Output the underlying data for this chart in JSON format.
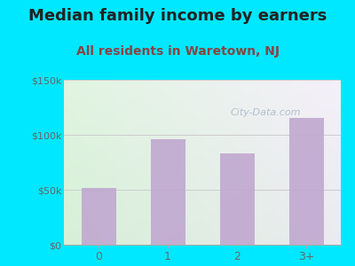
{
  "title": "Median family income by earners",
  "subtitle": "All residents in Waretown, NJ",
  "categories": [
    "0",
    "1",
    "2",
    "3+"
  ],
  "values": [
    52000,
    96000,
    83000,
    115000
  ],
  "bar_color": "#c0a8d0",
  "ylim": [
    0,
    150000
  ],
  "yticks": [
    0,
    50000,
    100000,
    150000
  ],
  "ytick_labels": [
    "$0",
    "$50k",
    "$100k",
    "$150k"
  ],
  "background_outer": "#00e8ff",
  "bg_color_topleft": "#d8eed8",
  "bg_color_topright": "#e8f0f8",
  "bg_color_bottomleft": "#c8e8c0",
  "bg_color_bottomright": "#d8ecf0",
  "title_color": "#222222",
  "subtitle_color": "#884444",
  "title_fontsize": 13,
  "subtitle_fontsize": 10,
  "watermark_text": "City-Data.com",
  "watermark_color": "#a8b8c8",
  "tick_color": "#666666",
  "grid_color": "#cccccc"
}
